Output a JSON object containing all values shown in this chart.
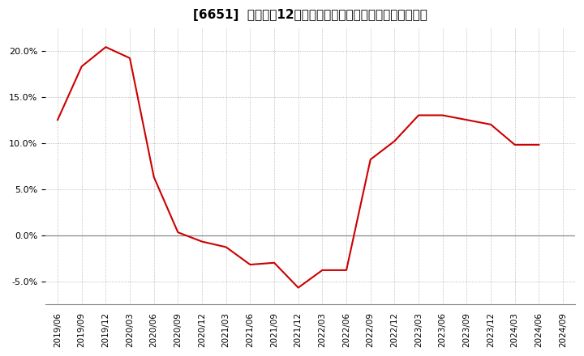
{
  "title": "[6651]  売上高の12か月移動合計の対前年同期増減率の推移",
  "line_color": "#cc0000",
  "background_color": "#ffffff",
  "plot_bg_color": "#ffffff",
  "grid_color": "#aaaaaa",
  "zero_line_color": "#888888",
  "dates": [
    "2019/06",
    "2019/09",
    "2019/12",
    "2020/03",
    "2020/06",
    "2020/09",
    "2020/12",
    "2021/03",
    "2021/06",
    "2021/09",
    "2021/12",
    "2022/03",
    "2022/06",
    "2022/09",
    "2022/12",
    "2023/03",
    "2023/06",
    "2023/09",
    "2023/12",
    "2024/03",
    "2024/06",
    "2024/09"
  ],
  "values": [
    0.125,
    0.183,
    0.204,
    0.192,
    0.063,
    0.003,
    -0.007,
    -0.013,
    -0.032,
    -0.03,
    -0.057,
    -0.038,
    -0.038,
    0.082,
    0.102,
    0.13,
    0.13,
    0.125,
    0.12,
    0.098,
    0.098,
    null
  ],
  "ylim": [
    -0.075,
    0.225
  ],
  "yticks": [
    -0.05,
    0.0,
    0.05,
    0.1,
    0.15,
    0.2
  ],
  "figsize": [
    7.2,
    4.4
  ],
  "dpi": 100,
  "title_fontsize": 11,
  "tick_fontsize": 8,
  "xtick_fontsize": 7.5
}
